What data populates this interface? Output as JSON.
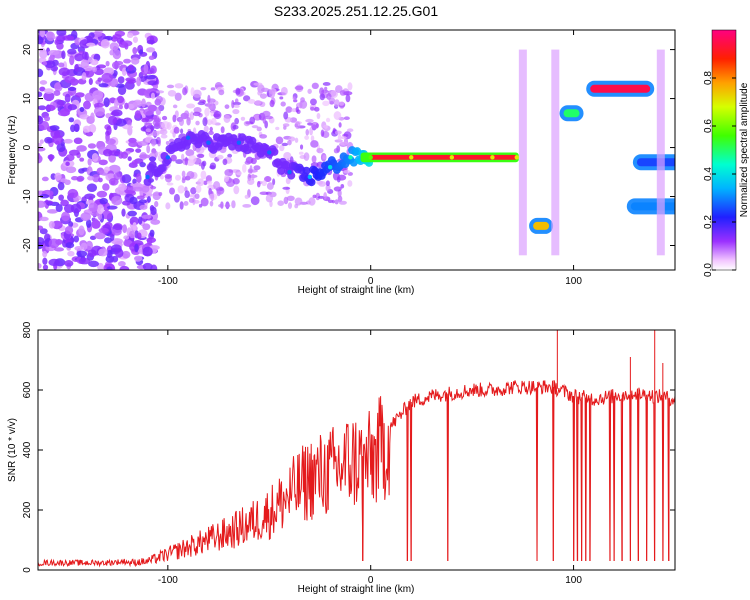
{
  "title": "S233.2025.251.12.25.G01",
  "colors": {
    "snr_line": "#e41a1c",
    "axis": "#000000",
    "background": "#ffffff"
  },
  "chart_data": [
    {
      "type": "heatmap",
      "title": "S233.2025.251.12.25.G01",
      "xlabel": "Height of straight line (km)",
      "ylabel": "Frequency (Hz)",
      "xlim": [
        -164,
        150
      ],
      "ylim": [
        -25,
        24
      ],
      "x_ticks": [
        -100,
        0,
        100
      ],
      "y_ticks": [
        -20,
        -10,
        0,
        10,
        20
      ],
      "x_tick_labels": [
        "-100",
        "0",
        "100"
      ],
      "y_tick_labels": [
        "-20",
        "-10",
        "0",
        "10",
        "20"
      ],
      "colorbar": {
        "label": "Normalized spectral amplitude",
        "range": [
          0.0,
          1.0
        ],
        "ticks": [
          0.0,
          0.2,
          0.4,
          0.6,
          0.8
        ],
        "tick_labels": [
          "0.0",
          "0.2",
          "0.4",
          "0.6",
          "0.8"
        ],
        "colormap": "rainbow"
      },
      "ridge": [
        {
          "x": -110,
          "y": -6,
          "amp": 0.3
        },
        {
          "x": -100,
          "y": -2,
          "amp": 0.3
        },
        {
          "x": -90,
          "y": 2,
          "amp": 0.3
        },
        {
          "x": -80,
          "y": 1,
          "amp": 0.3
        },
        {
          "x": -65,
          "y": 1,
          "amp": 0.3
        },
        {
          "x": -50,
          "y": -1,
          "amp": 0.3
        },
        {
          "x": -40,
          "y": -5,
          "amp": 0.3
        },
        {
          "x": -30,
          "y": -6,
          "amp": 0.4
        },
        {
          "x": -20,
          "y": -4,
          "amp": 0.5
        },
        {
          "x": -10,
          "y": -2,
          "amp": 0.6
        },
        {
          "x": 0,
          "y": -2,
          "amp": 0.8
        },
        {
          "x": 20,
          "y": -2,
          "amp": 1.0
        },
        {
          "x": 40,
          "y": -2,
          "amp": 1.0
        },
        {
          "x": 60,
          "y": -2,
          "amp": 1.0
        },
        {
          "x": 72,
          "y": -2,
          "amp": 1.0
        }
      ],
      "blobs": [
        {
          "x": 84,
          "y": -16,
          "amp": 0.75
        },
        {
          "x": 99,
          "y": 7,
          "amp": 0.5
        },
        {
          "x": 123,
          "y": 12,
          "amp": 0.95
        },
        {
          "x": 143,
          "y": -12,
          "amp": 0.3
        },
        {
          "x": 146,
          "y": -3,
          "amp": 0.25
        }
      ]
    },
    {
      "type": "line",
      "xlabel": "Height of straight line (km)",
      "ylabel": "SNR (10 * v/v)",
      "xlim": [
        -164,
        150
      ],
      "ylim": [
        0,
        800
      ],
      "x_ticks": [
        -100,
        0,
        100
      ],
      "y_ticks": [
        0,
        200,
        400,
        600,
        800
      ],
      "x_tick_labels": [
        "-100",
        "0",
        "100"
      ],
      "y_tick_labels": [
        "0",
        "200",
        "400",
        "600",
        "800"
      ],
      "series": [
        {
          "color": "#e41a1c",
          "envelope": {
            "x": [
              -164,
              -130,
              -110,
              -90,
              -70,
              -60,
              -50,
              -40,
              -30,
              -20,
              -10,
              0,
              5,
              10,
              20,
              30,
              40,
              50,
              60,
              70,
              80,
              90,
              100,
              110,
              120,
              130,
              140,
              150
            ],
            "y": [
              20,
              20,
              30,
              80,
              130,
              160,
              200,
              260,
              320,
              340,
              380,
              380,
              420,
              480,
              560,
              580,
              590,
              600,
              600,
              610,
              610,
              610,
              580,
              570,
              580,
              590,
              580,
              570
            ]
          },
          "dropouts_x": [
            -4,
            18,
            20,
            38,
            82,
            90,
            100,
            102,
            104,
            106,
            108,
            118,
            120,
            124,
            128,
            132,
            136,
            140,
            144,
            147
          ],
          "spikes": [
            {
              "x": 92,
              "y": 800
            },
            {
              "x": 140,
              "y": 810
            },
            {
              "x": 144,
              "y": 690
            },
            {
              "x": 128,
              "y": 710
            }
          ]
        }
      ]
    }
  ]
}
